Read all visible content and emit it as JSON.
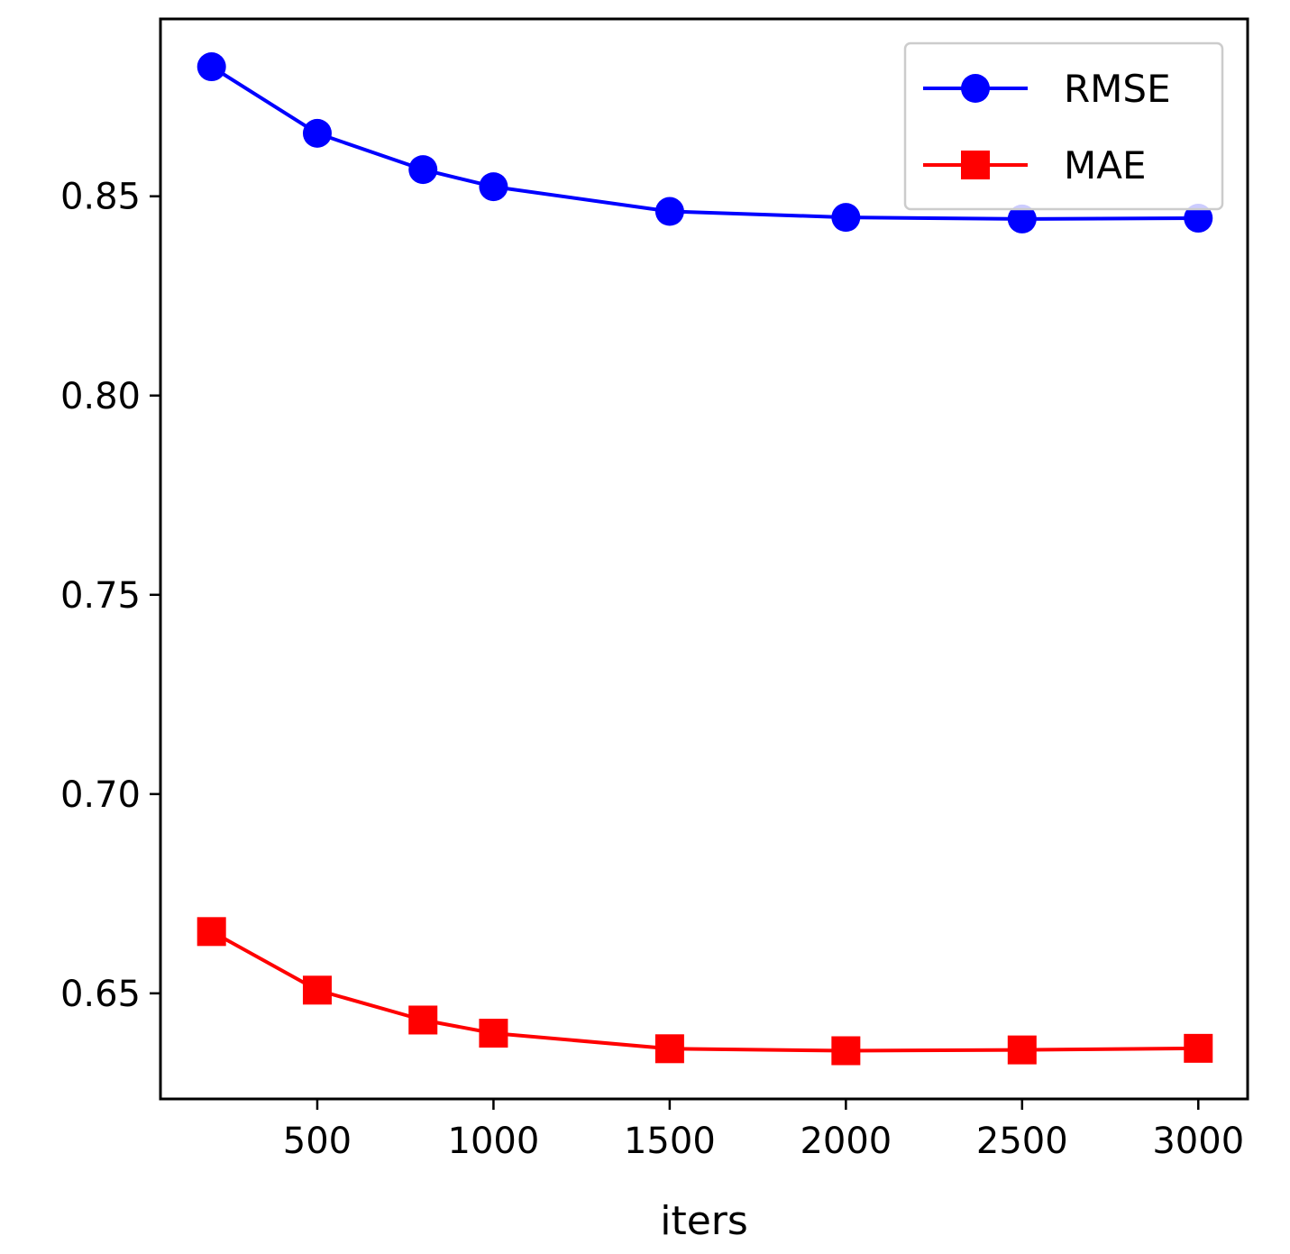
{
  "chart_data": {
    "type": "line",
    "title": "",
    "xlabel": "iters",
    "ylabel": "",
    "x": [
      200,
      500,
      800,
      1000,
      1500,
      2000,
      2500,
      3000
    ],
    "xlim": [
      55,
      3140
    ],
    "ylim": [
      0.6235,
      0.8945
    ],
    "xticks": [
      500,
      1000,
      1500,
      2000,
      2500,
      3000
    ],
    "xtick_labels": [
      "500",
      "1000",
      "1500",
      "2000",
      "2500",
      "3000"
    ],
    "yticks": [
      0.65,
      0.7,
      0.75,
      0.8,
      0.85
    ],
    "ytick_labels": [
      "0.65",
      "0.70",
      "0.75",
      "0.80",
      "0.85"
    ],
    "grid": false,
    "legend": "upper-right",
    "series": [
      {
        "name": "RMSE",
        "color": "#0000ff",
        "marker": "circle",
        "values": [
          0.8825,
          0.8658,
          0.8567,
          0.8524,
          0.8462,
          0.8447,
          0.8443,
          0.8445
        ]
      },
      {
        "name": "MAE",
        "color": "#ff0000",
        "marker": "square",
        "values": [
          0.6655,
          0.6508,
          0.6433,
          0.64,
          0.6361,
          0.6356,
          0.6358,
          0.6362
        ]
      }
    ]
  }
}
